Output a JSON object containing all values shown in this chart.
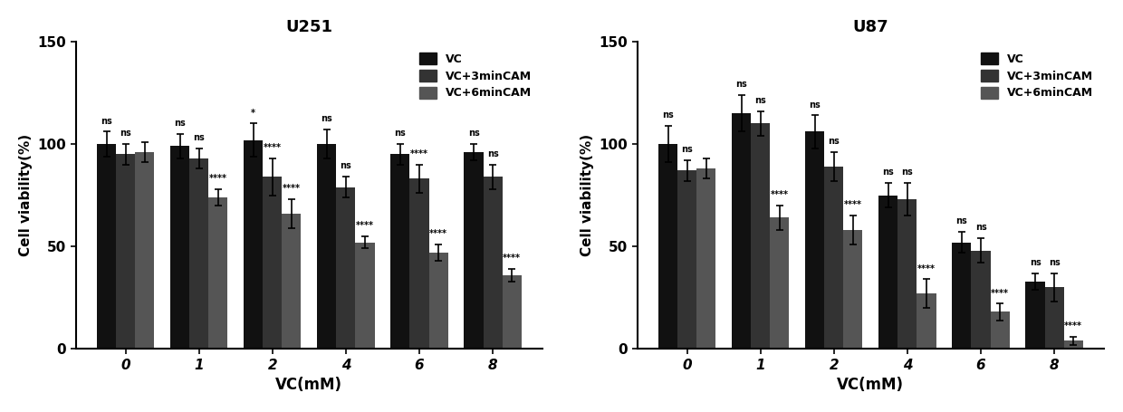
{
  "U251": {
    "title": "U251",
    "categories": [
      0,
      1,
      2,
      4,
      6,
      8
    ],
    "VC": [
      100,
      99,
      102,
      100,
      95,
      96
    ],
    "VC3": [
      95,
      93,
      84,
      79,
      83,
      84
    ],
    "VC6": [
      96,
      74,
      66,
      52,
      47,
      36
    ],
    "VC_err": [
      6,
      6,
      8,
      7,
      5,
      4
    ],
    "VC3_err": [
      5,
      5,
      9,
      5,
      7,
      6
    ],
    "VC6_err": [
      5,
      4,
      7,
      3,
      4,
      3
    ],
    "sig_VC2": [
      "ns",
      "ns",
      "*",
      "ns",
      "ns",
      "ns"
    ],
    "sig_VC3": [
      "ns",
      "ns",
      "****",
      "ns",
      "****",
      "ns"
    ],
    "sig_VC6": [
      null,
      "****",
      "****",
      "****",
      "****",
      "****"
    ]
  },
  "U87": {
    "title": "U87",
    "categories": [
      0,
      1,
      2,
      4,
      6,
      8
    ],
    "VC": [
      100,
      115,
      106,
      75,
      52,
      33
    ],
    "VC3": [
      87,
      110,
      89,
      73,
      48,
      30
    ],
    "VC6": [
      88,
      64,
      58,
      27,
      18,
      4
    ],
    "VC_err": [
      9,
      9,
      8,
      6,
      5,
      4
    ],
    "VC3_err": [
      5,
      6,
      7,
      8,
      6,
      7
    ],
    "VC6_err": [
      5,
      6,
      7,
      7,
      4,
      2
    ],
    "sig_VC2": [
      "ns",
      "ns",
      "ns",
      "ns",
      "ns",
      "ns"
    ],
    "sig_VC3": [
      "ns",
      "ns",
      "ns",
      "ns",
      "ns",
      "ns"
    ],
    "sig_VC6": [
      null,
      "****",
      "****",
      "****",
      "****",
      "****"
    ]
  },
  "legend_labels": [
    "VC",
    "VC+3minCAM",
    "VC+6minCAM"
  ],
  "bar_colors": [
    "#111111",
    "#333333",
    "#555555"
  ],
  "ylabel": "Cell viability(%)",
  "xlabel": "VC(mM)",
  "ylim": [
    0,
    150
  ],
  "yticks": [
    0,
    50,
    100,
    150
  ],
  "bar_width": 0.26,
  "figsize": [
    12.4,
    4.55
  ],
  "dpi": 100
}
